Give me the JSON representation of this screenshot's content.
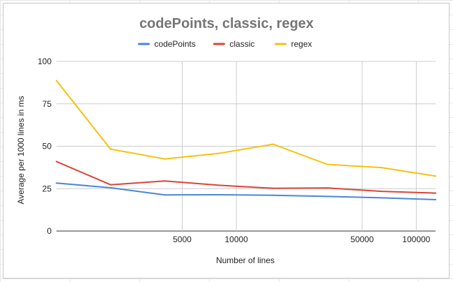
{
  "chart_data": {
    "type": "line",
    "title": "codePoints, classic, regex",
    "xlabel": "Number of lines",
    "ylabel": "Average per 1000 lines in ms",
    "x_scale": "log",
    "xlim": [
      1000,
      128000
    ],
    "ylim": [
      0,
      100
    ],
    "x_ticks": [
      5000,
      10000,
      50000,
      100000
    ],
    "y_ticks": [
      0,
      25,
      50,
      75,
      100
    ],
    "grid": true,
    "legend_position": "top",
    "x": [
      1000,
      2000,
      4000,
      8000,
      16000,
      32000,
      64000,
      128000
    ],
    "series": [
      {
        "name": "codePoints",
        "color": "#4a86d8",
        "values": [
          28.3,
          25.5,
          21.3,
          21.4,
          21.1,
          20.4,
          19.6,
          18.5
        ]
      },
      {
        "name": "classic",
        "color": "#db4437",
        "values": [
          41.0,
          27.3,
          29.5,
          27.0,
          25.2,
          25.4,
          23.4,
          22.4
        ]
      },
      {
        "name": "regex",
        "color": "#f4c20d",
        "values": [
          88.7,
          48.3,
          42.5,
          45.8,
          51.2,
          39.3,
          37.4,
          32.4
        ]
      }
    ]
  }
}
